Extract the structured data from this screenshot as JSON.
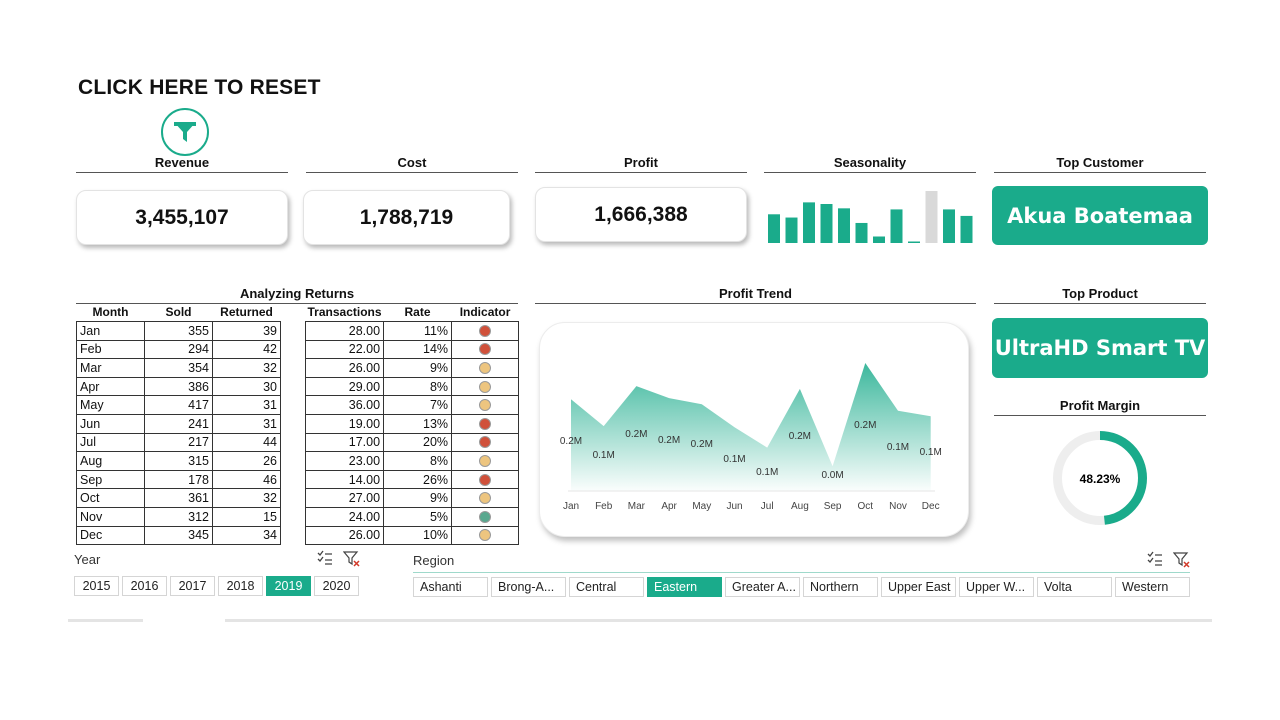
{
  "reset": {
    "label": "CLICK HERE TO RESET"
  },
  "kpis": {
    "revenue": {
      "title": "Revenue",
      "value": "3,455,107"
    },
    "cost": {
      "title": "Cost",
      "value": "1,788,719"
    },
    "profit": {
      "title": "Profit",
      "value": "1,666,388"
    },
    "seasonality": {
      "title": "Seasonality"
    },
    "top_customer": {
      "title": "Top Customer",
      "value": "Akua Boatemaa"
    },
    "top_product": {
      "title": "Top Product",
      "value": "UltraHD Smart TV"
    },
    "profit_margin": {
      "title": "Profit Margin",
      "value": "48.23%",
      "fraction": 0.4823
    }
  },
  "colors": {
    "accent": "#1aab8b",
    "muted_bar": "#d9d9d9",
    "red": "#d0513b",
    "yellow": "#edc57f",
    "green": "#5aa88f"
  },
  "returns": {
    "title": "Analyzing Returns",
    "headers": [
      "Month",
      "Sold",
      "Returned",
      "Transactions",
      "Rate",
      "Indicator"
    ],
    "rows": [
      {
        "month": "Jan",
        "sold": "355",
        "returned": "39",
        "transactions": "28.00",
        "rate": "11%",
        "indicator": "red"
      },
      {
        "month": "Feb",
        "sold": "294",
        "returned": "42",
        "transactions": "22.00",
        "rate": "14%",
        "indicator": "red"
      },
      {
        "month": "Mar",
        "sold": "354",
        "returned": "32",
        "transactions": "26.00",
        "rate": "9%",
        "indicator": "yellow"
      },
      {
        "month": "Apr",
        "sold": "386",
        "returned": "30",
        "transactions": "29.00",
        "rate": "8%",
        "indicator": "yellow"
      },
      {
        "month": "May",
        "sold": "417",
        "returned": "31",
        "transactions": "36.00",
        "rate": "7%",
        "indicator": "yellow"
      },
      {
        "month": "Jun",
        "sold": "241",
        "returned": "31",
        "transactions": "19.00",
        "rate": "13%",
        "indicator": "red"
      },
      {
        "month": "Jul",
        "sold": "217",
        "returned": "44",
        "transactions": "17.00",
        "rate": "20%",
        "indicator": "red"
      },
      {
        "month": "Aug",
        "sold": "315",
        "returned": "26",
        "transactions": "23.00",
        "rate": "8%",
        "indicator": "yellow"
      },
      {
        "month": "Sep",
        "sold": "178",
        "returned": "46",
        "transactions": "14.00",
        "rate": "26%",
        "indicator": "red"
      },
      {
        "month": "Oct",
        "sold": "361",
        "returned": "32",
        "transactions": "27.00",
        "rate": "9%",
        "indicator": "yellow"
      },
      {
        "month": "Nov",
        "sold": "312",
        "returned": "15",
        "transactions": "24.00",
        "rate": "5%",
        "indicator": "green"
      },
      {
        "month": "Dec",
        "sold": "345",
        "returned": "34",
        "transactions": "26.00",
        "rate": "10%",
        "indicator": "yellow"
      }
    ]
  },
  "profit_trend": {
    "title": "Profit Trend",
    "months": [
      "Jan",
      "Feb",
      "Mar",
      "Apr",
      "May",
      "Jun",
      "Jul",
      "Aug",
      "Sep",
      "Oct",
      "Nov",
      "Dec"
    ],
    "labels": [
      "0.2M",
      "0.1M",
      "0.2M",
      "0.2M",
      "0.2M",
      "0.1M",
      "0.1M",
      "0.2M",
      "0.0M",
      "0.2M",
      "0.1M",
      "0.1M"
    ],
    "values": [
      0.167,
      0.118,
      0.191,
      0.169,
      0.158,
      0.116,
      0.079,
      0.186,
      0.045,
      0.233,
      0.146,
      0.136
    ]
  },
  "seasonality_data": [
    0.53,
    0.47,
    0.75,
    0.72,
    0.64,
    0.37,
    0.12,
    0.62,
    0.02,
    0.96,
    0.62,
    0.5
  ],
  "year_slicer": {
    "label": "Year",
    "options": [
      "2015",
      "2016",
      "2017",
      "2018",
      "2019",
      "2020"
    ],
    "selected": "2019"
  },
  "region_slicer": {
    "label": "Region",
    "options": [
      "Ashanti",
      "Brong-A...",
      "Central",
      "Eastern",
      "Greater A...",
      "Northern",
      "Upper East",
      "Upper W...",
      "Volta",
      "Western"
    ],
    "selected": "Eastern"
  }
}
